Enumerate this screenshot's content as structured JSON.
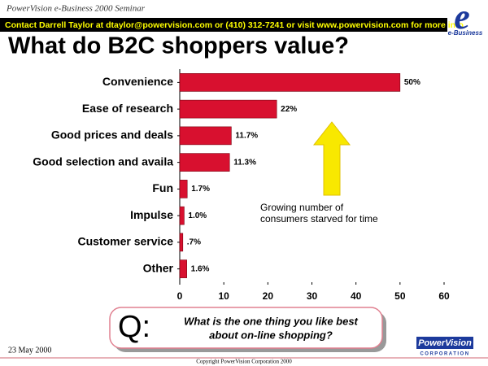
{
  "header": {
    "seminar": "PowerVision e-Business 2000 Seminar",
    "contact": "Contact Darrell Taylor at dtaylor@powervision.com or (410) 312-7241 or visit www.powervision.com for more info",
    "logo_letter": "e",
    "logo_text": "e-Business"
  },
  "chart_data": {
    "type": "bar",
    "orientation": "horizontal",
    "title": "What do B2C shoppers value?",
    "categories": [
      "Convenience",
      "Ease of research",
      "Good prices and deals",
      "Good selection and availa",
      "Fun",
      "Impulse",
      "Customer service",
      "Other"
    ],
    "values": [
      50,
      22,
      11.7,
      11.3,
      1.7,
      1.0,
      0.7,
      1.6
    ],
    "value_labels": [
      "50%",
      "22%",
      "11.7%",
      "11.3%",
      "1.7%",
      "1.0%",
      ".7%",
      "1.6%"
    ],
    "color": "#d8102f",
    "xlim": [
      0,
      60
    ],
    "xticks": [
      0,
      10,
      20,
      30,
      40,
      50,
      60
    ],
    "annotation": [
      "Growing number of",
      "consumers starved for time"
    ]
  },
  "question": {
    "letter": "Q:",
    "lines": [
      "What is the one thing you like best",
      "about on-line shopping?"
    ]
  },
  "footer": {
    "date": "23 May 2000",
    "logo_name": "PowerVision",
    "logo_sub": "CORPORATION",
    "copyright": "Copyright PowerVision Corporation 2000"
  }
}
